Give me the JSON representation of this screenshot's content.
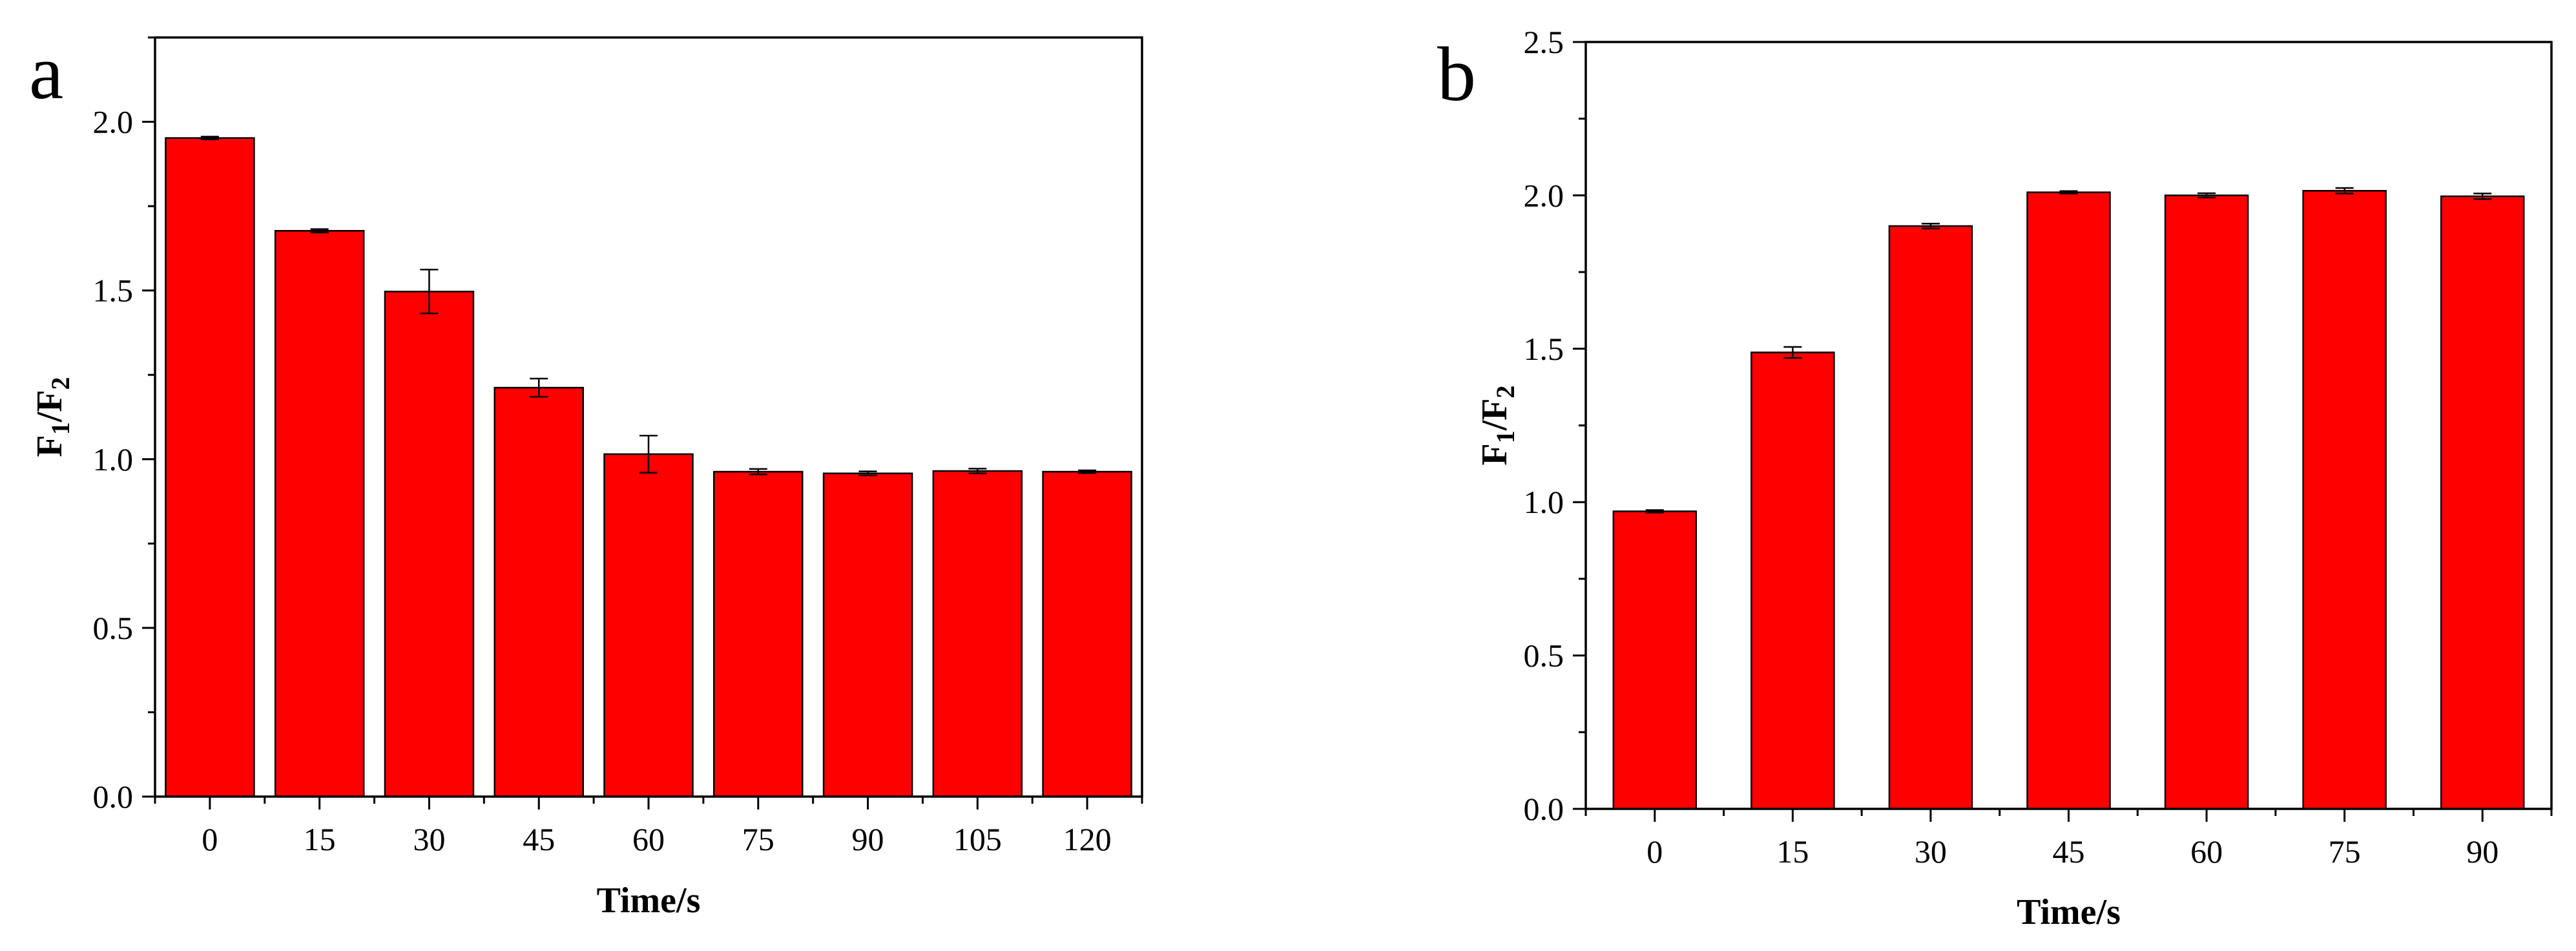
{
  "chart_data": [
    {
      "type": "bar",
      "panel_label": "a",
      "categories": [
        "0",
        "15",
        "30",
        "45",
        "60",
        "75",
        "90",
        "105",
        "120"
      ],
      "values": [
        1.952,
        1.677,
        1.497,
        1.212,
        1.015,
        0.963,
        0.958,
        0.965,
        0.963
      ],
      "errors": [
        0.004,
        0.005,
        0.065,
        0.027,
        0.055,
        0.008,
        0.006,
        0.007,
        0.004
      ],
      "xlabel": "Time/s",
      "ylabel": {
        "main": "F",
        "sub1": "1",
        "sep": "/F",
        "sub2": "2"
      },
      "ylim": [
        0,
        2.25
      ],
      "yticks": [
        "0.0",
        "0.5",
        "1.0",
        "1.5",
        "2.0"
      ],
      "ytick_values": [
        0,
        0.5,
        1.0,
        1.5,
        2.0
      ],
      "bar_color": "#ff0000",
      "grid": false
    },
    {
      "type": "bar",
      "panel_label": "b",
      "categories": [
        "0",
        "15",
        "30",
        "45",
        "60",
        "75",
        "90"
      ],
      "values": [
        0.97,
        1.488,
        1.9,
        2.01,
        2.0,
        2.015,
        1.997
      ],
      "errors": [
        0.004,
        0.018,
        0.008,
        0.004,
        0.007,
        0.009,
        0.009
      ],
      "xlabel": "Time/s",
      "ylabel": {
        "main": "F",
        "sub1": "1",
        "sep": "/F",
        "sub2": "2"
      },
      "ylim": [
        0,
        2.5
      ],
      "yticks": [
        "0.0",
        "0.5",
        "1.0",
        "1.5",
        "2.0",
        "2.5"
      ],
      "ytick_values": [
        0,
        0.5,
        1.0,
        1.5,
        2.0,
        2.5
      ],
      "bar_color": "#ff0000",
      "grid": false
    }
  ]
}
